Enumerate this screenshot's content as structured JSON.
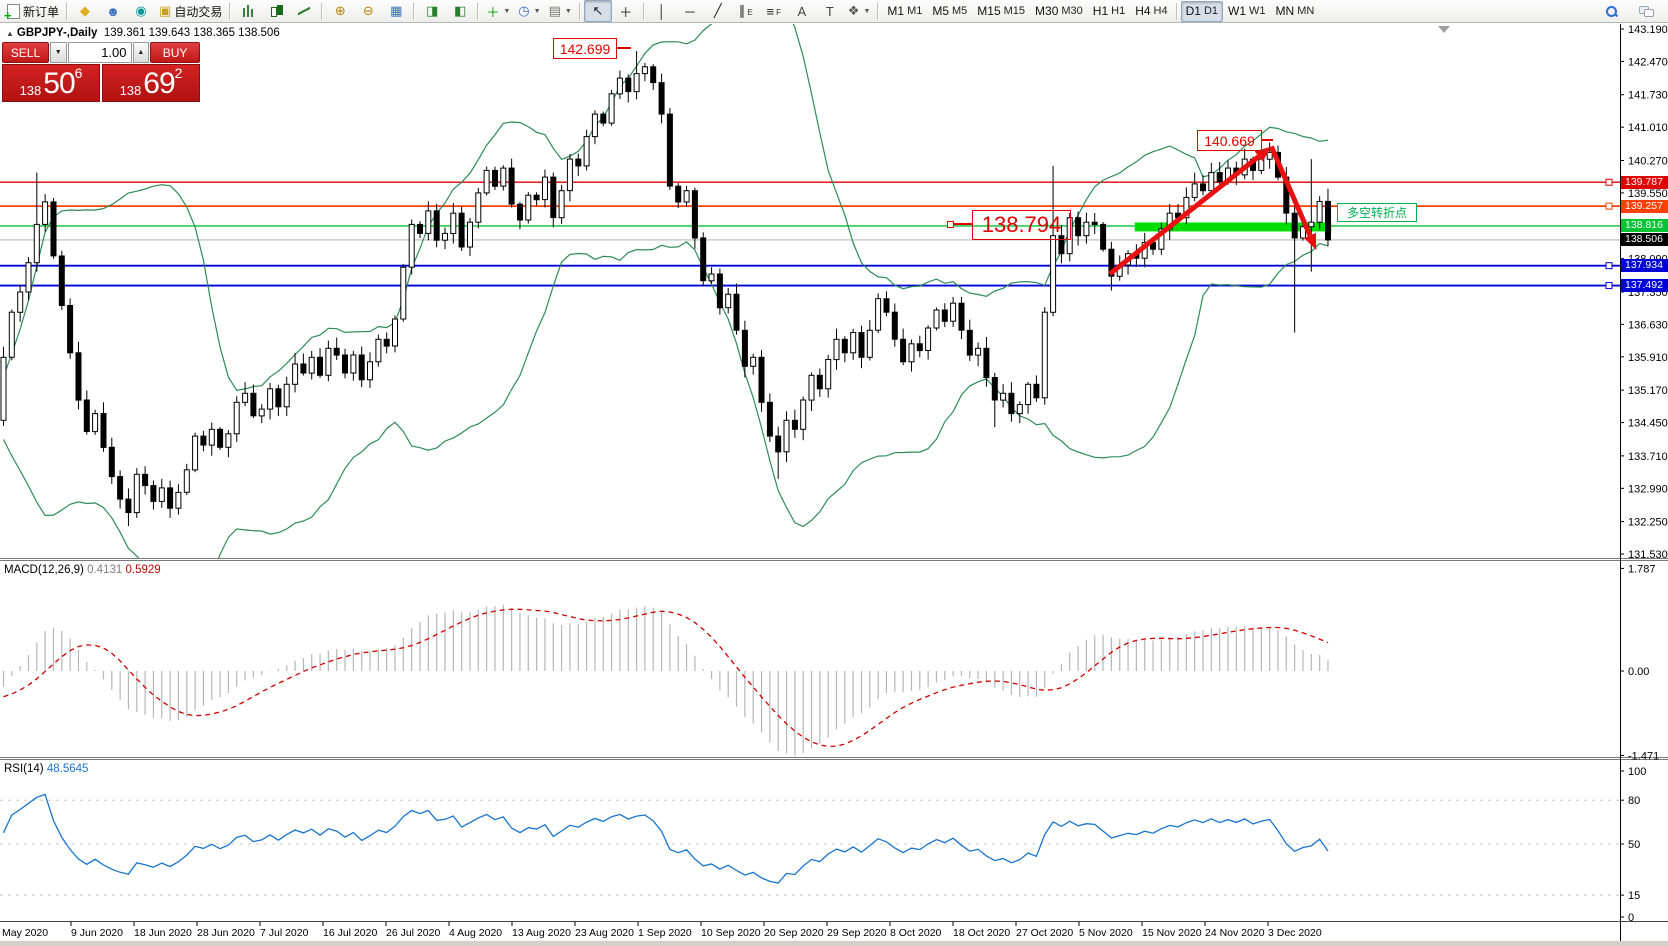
{
  "toolbar": {
    "items": [
      {
        "type": "btn",
        "name": "new-order-button",
        "css": "i-doc",
        "label": "新订单"
      },
      {
        "type": "sep"
      },
      {
        "type": "btn",
        "name": "highlighter-icon",
        "glyph": "◆",
        "color": "#dfae12"
      },
      {
        "type": "btn",
        "name": "community-icon",
        "glyph": "☻",
        "color": "#3a6fc0"
      },
      {
        "type": "btn",
        "name": "signals-icon",
        "glyph": "◉",
        "color": "#0a9a9a"
      },
      {
        "type": "btn",
        "name": "autotrading-button",
        "glyph": "▣",
        "color": "#c8a020",
        "label": "自动交易"
      },
      {
        "type": "sep"
      },
      {
        "type": "btn",
        "name": "bar-chart-button",
        "css": "i-bars"
      },
      {
        "type": "btn",
        "name": "candlestick-chart-button",
        "css": "i-candle"
      },
      {
        "type": "btn",
        "name": "line-chart-button",
        "css": "i-linec"
      },
      {
        "type": "sep"
      },
      {
        "type": "btn",
        "name": "zoom-in-button",
        "glyph": "⊕",
        "color": "#b8860b"
      },
      {
        "type": "btn",
        "name": "zoom-out-button",
        "glyph": "⊖",
        "color": "#b8860b"
      },
      {
        "type": "btn",
        "name": "tile-windows-button",
        "glyph": "▦",
        "color": "#3a6fc0"
      },
      {
        "type": "sep"
      },
      {
        "type": "btn",
        "name": "auto-scroll-button",
        "glyph": "◨",
        "color": "#2a7d2a"
      },
      {
        "type": "btn",
        "name": "chart-shift-button",
        "glyph": "◧",
        "color": "#2a7d2a"
      },
      {
        "type": "sep"
      },
      {
        "type": "btn",
        "name": "indicators-button",
        "glyph": "＋",
        "color": "#0a9a0a",
        "caret": true
      },
      {
        "type": "btn",
        "name": "periods-button",
        "glyph": "◷",
        "color": "#3a6fc0",
        "caret": true
      },
      {
        "type": "btn",
        "name": "templates-button",
        "glyph": "▤",
        "color": "#777",
        "caret": true
      },
      {
        "type": "sep"
      },
      {
        "type": "btn",
        "name": "cursor-button",
        "glyph": "↖",
        "color": "#222",
        "active": true
      },
      {
        "type": "btn",
        "name": "crosshair-button",
        "glyph": "＋",
        "color": "#222"
      },
      {
        "type": "sep"
      },
      {
        "type": "btn",
        "name": "vertical-line-button",
        "glyph": "│",
        "color": "#222"
      },
      {
        "type": "btn",
        "name": "horizontal-line-button",
        "glyph": "─",
        "color": "#222"
      },
      {
        "type": "btn",
        "name": "trendline-button",
        "glyph": "╱",
        "color": "#222"
      },
      {
        "type": "btn",
        "name": "channel-button",
        "glyph": "∥",
        "color": "#222",
        "sub": "E"
      },
      {
        "type": "btn",
        "name": "fibonacci-button",
        "glyph": "≡",
        "color": "#222",
        "sub": "F"
      },
      {
        "type": "btn",
        "name": "text-button",
        "glyph": "A",
        "color": "#444"
      },
      {
        "type": "btn",
        "name": "text-label-button",
        "glyph": "T",
        "color": "#444"
      },
      {
        "type": "btn",
        "name": "arrows-button",
        "glyph": "❖",
        "color": "#555",
        "caret": true
      },
      {
        "type": "sep"
      },
      {
        "type": "tf",
        "name": "timeframe-m1",
        "label": "M1"
      },
      {
        "type": "tf",
        "name": "timeframe-m5",
        "label": "M5"
      },
      {
        "type": "tf",
        "name": "timeframe-m15",
        "label": "M15"
      },
      {
        "type": "tf",
        "name": "timeframe-m30",
        "label": "M30"
      },
      {
        "type": "tf",
        "name": "timeframe-h1",
        "label": "H1"
      },
      {
        "type": "tf",
        "name": "timeframe-h4",
        "label": "H4"
      },
      {
        "type": "sep"
      },
      {
        "type": "tf",
        "name": "timeframe-d1",
        "label": "D1",
        "active": true
      },
      {
        "type": "tf",
        "name": "timeframe-w1",
        "label": "W1"
      },
      {
        "type": "tf",
        "name": "timeframe-mn",
        "label": "MN"
      }
    ],
    "right_items": [
      {
        "name": "search-button",
        "css": "i-search"
      },
      {
        "name": "chat-button",
        "css": "i-chat"
      }
    ]
  },
  "quote": {
    "symbol": "GBPJPY-,Daily",
    "ohlc": "139.361 139.643 138.365 138.506"
  },
  "one_click": {
    "sell_label": "SELL",
    "buy_label": "BUY",
    "volume": "1.00",
    "sell_big": "138",
    "sell_main": "50",
    "sell_pip": "6",
    "buy_big": "138",
    "buy_main": "69",
    "buy_pip": "2"
  },
  "annotations": {
    "high_sep": "142.699",
    "high_dec": "140.669",
    "pivot_level": "138.794",
    "note": "多空转折点"
  },
  "indicators": {
    "macd_name": "MACD(12,26,9)",
    "macd_value_main": "0.4131",
    "macd_value_signal": "0.5929",
    "rsi_name": "RSI(14)",
    "rsi_value": "48.5645"
  },
  "chart_data": {
    "type": "candlestick",
    "symbol": "GBPJPY-",
    "timeframe": "Daily",
    "ylim": [
      131.53,
      143.19
    ],
    "price_ticks": [
      "143.190",
      "142.470",
      "141.730",
      "141.010",
      "140.270",
      "139.550",
      "138.090",
      "137.350",
      "136.630",
      "135.910",
      "135.170",
      "134.450",
      "133.710",
      "132.990",
      "132.250",
      "131.530"
    ],
    "date_labels": [
      "May 2020",
      "9 Jun 2020",
      "18 Jun 2020",
      "28 Jun 2020",
      "7 Jul 2020",
      "16 Jul 2020",
      "26 Jul 2020",
      "4 Aug 2020",
      "13 Aug 2020",
      "23 Aug 2020",
      "1 Sep 2020",
      "10 Sep 2020",
      "20 Sep 2020",
      "29 Sep 2020",
      "8 Oct 2020",
      "18 Oct 2020",
      "27 Oct 2020",
      "5 Nov 2020",
      "15 Nov 2020",
      "24 Nov 2020",
      "3 Dec 2020"
    ],
    "warmup_closes": [
      136.8,
      136.6,
      136.4,
      136.2,
      136.0,
      135.8,
      135.6,
      135.4,
      135.2,
      135.0,
      134.85,
      134.75,
      134.65,
      134.6,
      134.55,
      134.5,
      134.5,
      134.55,
      134.6,
      134.65,
      134.7,
      134.7,
      134.65,
      134.6,
      134.55,
      134.5
    ],
    "closes": [
      135.9,
      136.9,
      137.35,
      138.0,
      138.85,
      139.35,
      138.15,
      137.05,
      136.0,
      134.95,
      134.25,
      134.65,
      133.9,
      133.25,
      132.75,
      132.45,
      133.3,
      133.05,
      132.7,
      133.0,
      132.55,
      132.9,
      133.4,
      134.15,
      133.95,
      134.3,
      133.9,
      134.2,
      134.9,
      135.1,
      134.6,
      134.75,
      135.2,
      134.8,
      135.3,
      135.75,
      135.55,
      135.9,
      135.5,
      136.1,
      135.95,
      135.55,
      135.95,
      135.4,
      135.8,
      136.3,
      136.15,
      136.75,
      137.9,
      138.85,
      138.65,
      139.15,
      138.5,
      138.65,
      139.1,
      138.35,
      138.9,
      139.55,
      140.05,
      139.7,
      140.1,
      139.3,
      138.95,
      139.5,
      139.4,
      139.9,
      139.0,
      139.6,
      140.3,
      140.15,
      140.8,
      141.3,
      141.1,
      141.75,
      142.1,
      141.8,
      142.2,
      142.35,
      142.0,
      141.3,
      139.7,
      139.35,
      139.6,
      138.55,
      137.6,
      137.75,
      137.0,
      137.3,
      136.5,
      135.7,
      135.9,
      134.9,
      134.15,
      133.8,
      134.5,
      134.3,
      134.95,
      135.5,
      135.2,
      135.85,
      136.3,
      136.0,
      136.45,
      135.9,
      136.5,
      137.2,
      136.9,
      136.3,
      135.8,
      136.2,
      136.05,
      136.55,
      136.95,
      136.7,
      137.1,
      136.5,
      135.95,
      136.1,
      135.45,
      134.95,
      135.1,
      134.65,
      134.85,
      135.3,
      135.0,
      136.9,
      138.6,
      138.2,
      139.0,
      138.6,
      138.9,
      138.85,
      138.3,
      137.7,
      137.95,
      138.2,
      138.1,
      138.45,
      138.3,
      138.75,
      139.1,
      139.0,
      139.45,
      139.75,
      139.6,
      140.0,
      139.8,
      140.1,
      139.95,
      140.3,
      140.05,
      140.3,
      140.45,
      139.9,
      139.1,
      138.55,
      138.8,
      138.9,
      139.36,
      138.51
    ],
    "special_candles": {
      "4": {
        "h": 140.0
      },
      "15": {
        "l": 132.15
      },
      "76": {
        "h": 142.699
      },
      "93": {
        "l": 133.2
      },
      "119": {
        "l": 134.35
      },
      "126": {
        "h": 140.15
      },
      "133": {
        "l": 137.38
      },
      "143": {
        "h": 140.0
      },
      "152": {
        "h": 140.669
      },
      "155": {
        "l": 136.45
      },
      "157": {
        "h": 140.3,
        "l": 137.8
      },
      "159": {
        "o": 139.361,
        "h": 139.643,
        "l": 138.365,
        "c": 138.506
      }
    },
    "bollinger": {
      "period": 20,
      "deviation": 2,
      "color": "#2e8b57"
    },
    "levels": [
      {
        "price": 139.787,
        "label": "139.787",
        "color": "#e00000",
        "line": true,
        "handle": true,
        "width": 1.4
      },
      {
        "price": 139.257,
        "label": "139.257",
        "color": "#ff4000",
        "line": true,
        "handle": true,
        "width": 1.8
      },
      {
        "price": 138.816,
        "label": "138.816",
        "color": "#00c432",
        "line": true,
        "handle": false,
        "width": 1.4
      },
      {
        "price": 138.506,
        "label": "138.506",
        "color": "#000000",
        "line": false,
        "current": true
      },
      {
        "price": 137.934,
        "label": "137.934",
        "color": "#0000d8",
        "line": true,
        "handle": true,
        "width": 1.8
      },
      {
        "price": 137.492,
        "label": "137.492",
        "color": "#0000d8",
        "line": true,
        "handle": true,
        "width": 1.8
      }
    ],
    "current_price": 138.506,
    "green_zone": {
      "i1": 135.8,
      "i2": 159.4,
      "price": 138.794,
      "height": 9,
      "color": "#00dd00"
    },
    "trend_arrows": [
      {
        "i1": 132.8,
        "p1": 137.75,
        "i2": 152.2,
        "p2": 140.58,
        "color": "#e81010"
      },
      {
        "i1": 152.2,
        "p1": 140.58,
        "i2": 157.6,
        "p2": 138.28,
        "color": "#e81010"
      }
    ],
    "macd": {
      "fast": 12,
      "slow": 26,
      "signal": 9,
      "hist_color": "#b6b6b6",
      "signal_color": "#d00000",
      "axis_ticks": [
        "1.787",
        "0.00",
        "-1.471"
      ],
      "ylim": [
        -1.471,
        1.787
      ]
    },
    "rsi": {
      "period": 14,
      "color": "#1874cd",
      "levels": [
        80,
        50,
        15
      ],
      "axis_ticks": [
        "100",
        "80",
        "50",
        "15",
        "0"
      ]
    }
  }
}
